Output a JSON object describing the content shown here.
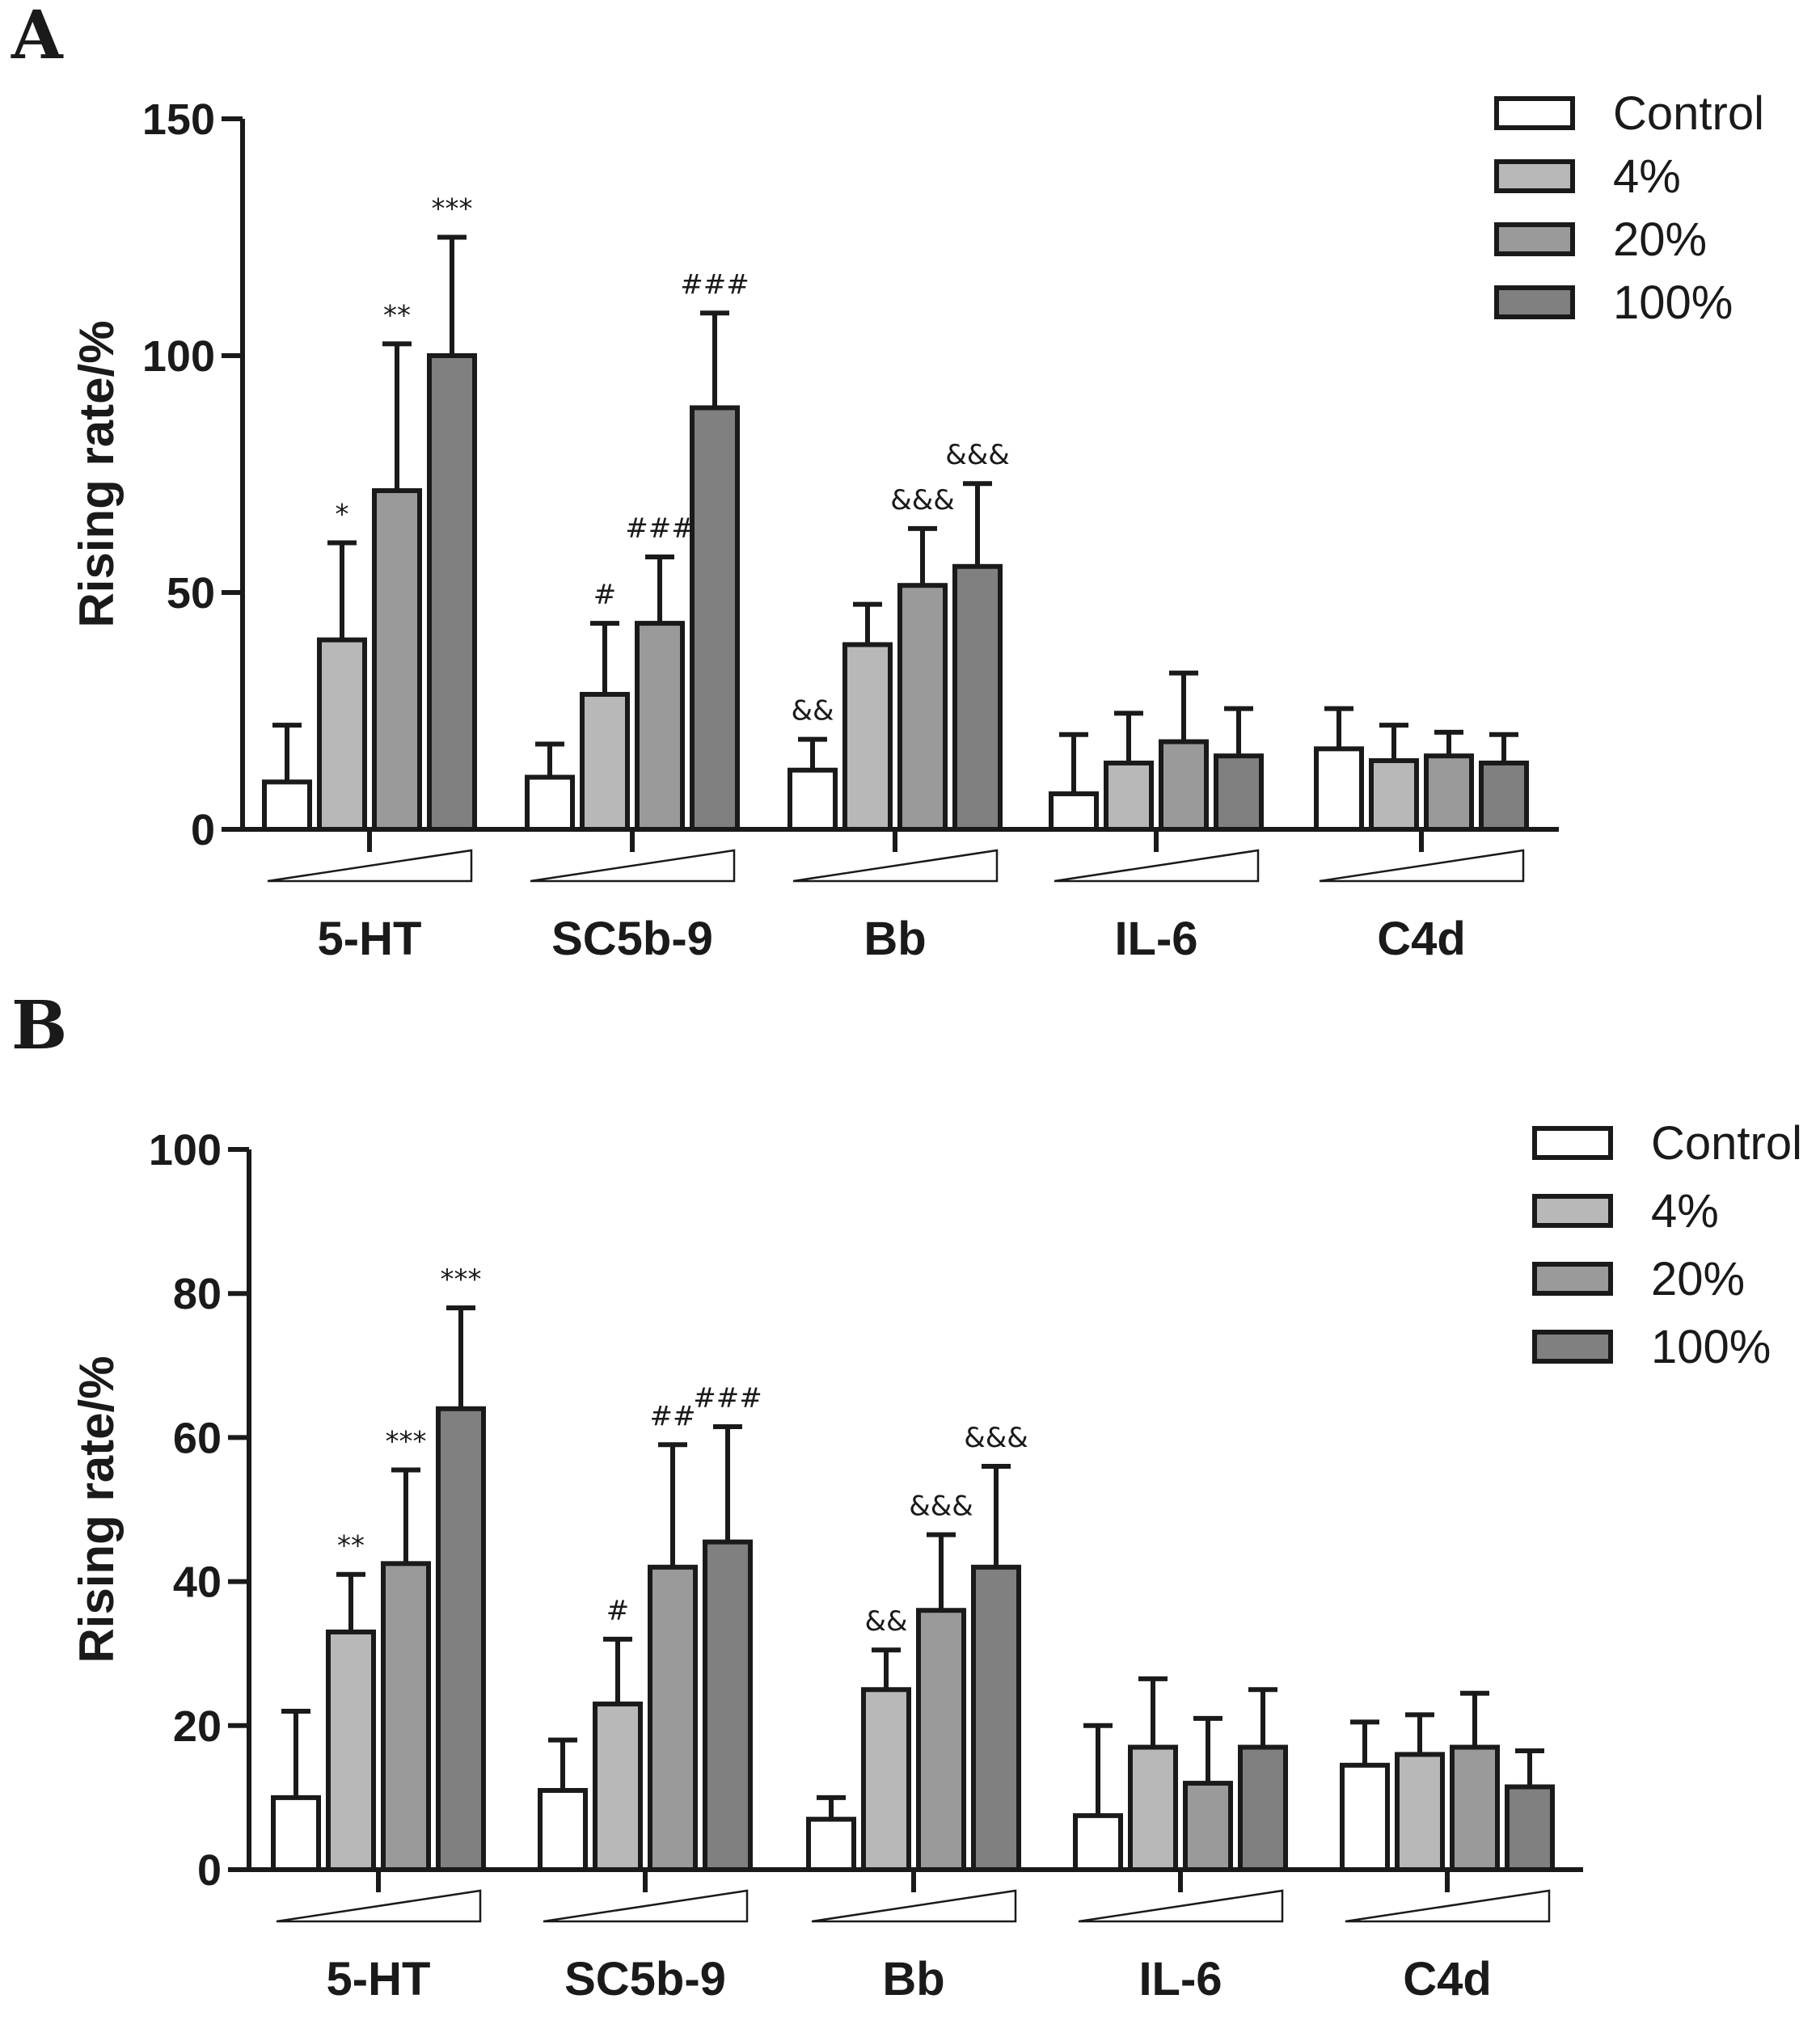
{
  "colors": {
    "Control": "#ffffff",
    "4%": "#b8b8b8",
    "20%": "#9a9a9a",
    "100%": "#808080",
    "axis": "#1a1a1a"
  },
  "chart_data": [
    {
      "panel": "A",
      "type": "bar",
      "ylabel": "Rising rate/%",
      "ylim": [
        0,
        150
      ],
      "yticks": [
        0,
        50,
        100,
        150
      ],
      "categories": [
        "5-HT",
        "SC5b-9",
        "Bb",
        "IL-6",
        "C4d"
      ],
      "legend": [
        "Control",
        "4%",
        "20%",
        "100%"
      ],
      "legend_position": "top-right",
      "series": [
        {
          "name": "Control",
          "values": [
            10,
            11,
            12.5,
            7.5,
            17
          ],
          "errors": [
            12,
            7,
            6.5,
            12.5,
            8.5
          ]
        },
        {
          "name": "4%",
          "values": [
            40,
            28.5,
            39,
            14,
            14.5
          ],
          "errors": [
            20.5,
            15,
            8.5,
            10.5,
            7.5
          ]
        },
        {
          "name": "20%",
          "values": [
            71.5,
            43.5,
            51.5,
            18.5,
            15.5
          ],
          "errors": [
            31,
            14,
            12,
            14.5,
            5
          ]
        },
        {
          "name": "100%",
          "values": [
            100,
            89,
            55.5,
            15.5,
            14
          ],
          "errors": [
            25,
            20,
            17.5,
            10,
            6
          ]
        }
      ],
      "annotations": [
        {
          "category": 0,
          "series": 1,
          "text": "*"
        },
        {
          "category": 0,
          "series": 2,
          "text": "**"
        },
        {
          "category": 0,
          "series": 3,
          "text": "***"
        },
        {
          "category": 1,
          "series": 1,
          "text": "#"
        },
        {
          "category": 1,
          "series": 2,
          "text": "###"
        },
        {
          "category": 1,
          "series": 3,
          "text": "###"
        },
        {
          "category": 2,
          "series": 0,
          "text": "&&"
        },
        {
          "category": 2,
          "series": 2,
          "text": "&&&"
        },
        {
          "category": 2,
          "series": 3,
          "text": "&&&"
        }
      ]
    },
    {
      "panel": "B",
      "type": "bar",
      "ylabel": "Rising rate/%",
      "ylim": [
        0,
        100
      ],
      "yticks": [
        0,
        20,
        40,
        60,
        80,
        100
      ],
      "categories": [
        "5-HT",
        "SC5b-9",
        "Bb",
        "IL-6",
        "C4d"
      ],
      "legend": [
        "Control",
        "4%",
        "20%",
        "100%"
      ],
      "legend_position": "top-right",
      "series": [
        {
          "name": "Control",
          "values": [
            10,
            11,
            7,
            7.5,
            14.5
          ],
          "errors": [
            12,
            7,
            3,
            12.5,
            6
          ]
        },
        {
          "name": "4%",
          "values": [
            33,
            23,
            25,
            17,
            16
          ],
          "errors": [
            8,
            9,
            5.5,
            9.5,
            5.5
          ]
        },
        {
          "name": "20%",
          "values": [
            42.5,
            42,
            36,
            12,
            17
          ],
          "errors": [
            13,
            17,
            10.5,
            9,
            7.5
          ]
        },
        {
          "name": "100%",
          "values": [
            64,
            45.5,
            42,
            17,
            11.5
          ],
          "errors": [
            14,
            16,
            14,
            8,
            5
          ]
        }
      ],
      "annotations": [
        {
          "category": 0,
          "series": 1,
          "text": "**"
        },
        {
          "category": 0,
          "series": 2,
          "text": "***"
        },
        {
          "category": 0,
          "series": 3,
          "text": "***"
        },
        {
          "category": 1,
          "series": 1,
          "text": "#"
        },
        {
          "category": 1,
          "series": 2,
          "text": "##"
        },
        {
          "category": 1,
          "series": 3,
          "text": "###"
        },
        {
          "category": 2,
          "series": 1,
          "text": "&&"
        },
        {
          "category": 2,
          "series": 2,
          "text": "&&&"
        },
        {
          "category": 2,
          "series": 3,
          "text": "&&&"
        }
      ]
    }
  ]
}
